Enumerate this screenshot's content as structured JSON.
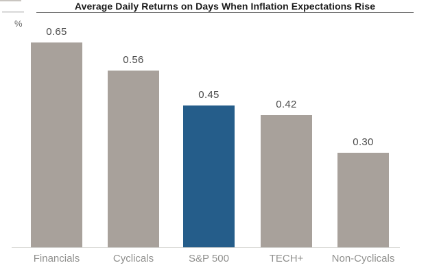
{
  "header": {
    "title": "Average Daily Returns on Days When Inflation Expectations Rise",
    "unit_label": "%"
  },
  "chart_data": {
    "type": "bar",
    "title": "Average Daily Returns on Days When Inflation Expectations Rise",
    "xlabel": "",
    "ylabel": "%",
    "categories": [
      "Financials",
      "Cyclicals",
      "S&P 500",
      "TECH+",
      "Non-Cyclicals"
    ],
    "values": [
      0.65,
      0.56,
      0.45,
      0.42,
      0.3
    ],
    "value_labels": [
      "0.65",
      "0.56",
      "0.45",
      "0.42",
      "0.30"
    ],
    "highlight_index": 2,
    "highlighted_category": "S&P 500",
    "ylim": [
      0,
      0.7
    ],
    "grid": false,
    "legend": false,
    "colors": {
      "bar_default": "#a8a19b",
      "bar_highlight": "#255d8a",
      "value_label": "#4a4a4a",
      "category_label": "#8f8f8d",
      "title": "#1b1b1b",
      "title_rule": "#4d4d4d",
      "axis_line": "#d6d6d3"
    }
  }
}
